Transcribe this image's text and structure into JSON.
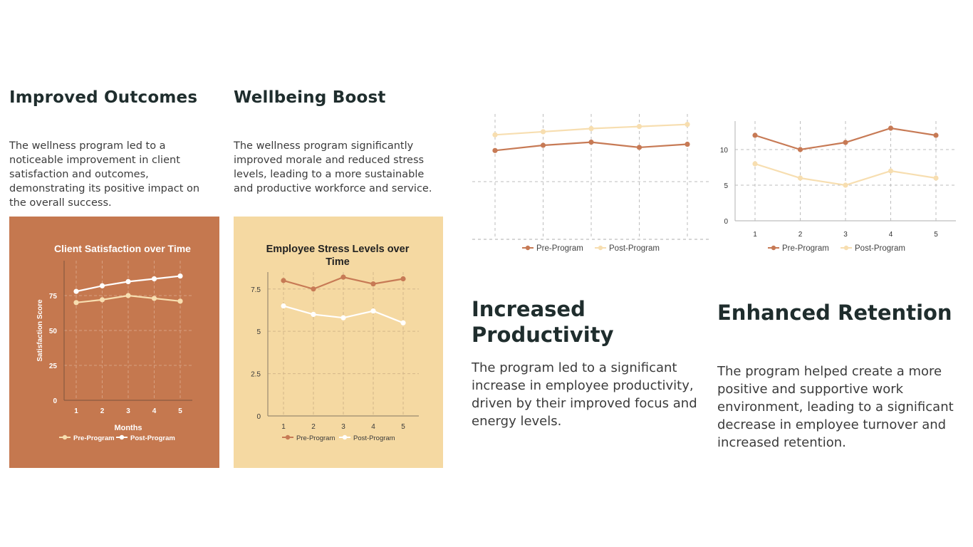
{
  "colors": {
    "terracotta": "#c5784f",
    "sand": "#f5d9a2",
    "pre": "#c77a55",
    "post": "#f7deb0",
    "white": "#ffffff"
  },
  "sections": {
    "outcomes": {
      "title": "Improved Outcomes",
      "text": "The wellness program led to a noticeable improvement in client satisfaction and outcomes, demonstrating its positive impact on the overall success."
    },
    "wellbeing": {
      "title": "Wellbeing Boost",
      "text": "The wellness program significantly improved morale and reduced stress levels, leading to a more sustainable and productive workforce and service."
    },
    "productivity": {
      "title_line1": "Increased",
      "title_line2": "Productivity",
      "text": "The program led to a significant increase in employee productivity, driven by their improved focus and energy levels."
    },
    "retention": {
      "title": "Enhanced Retention",
      "text": "The program helped create a more positive and supportive work environment, leading to a significant decrease in employee turnover and increased retention."
    }
  },
  "chart_data": [
    {
      "id": "client-satisfaction",
      "type": "line",
      "title": "Client Satisfaction over Time",
      "xlabel": "Months",
      "ylabel": "Satisfaction Score",
      "categories": [
        "1",
        "2",
        "3",
        "4",
        "5"
      ],
      "ylim": [
        0,
        100
      ],
      "yticks": [
        0,
        25,
        50,
        75
      ],
      "series": [
        {
          "name": "Pre-Program",
          "values": [
            70,
            72,
            75,
            73,
            71
          ]
        },
        {
          "name": "Post-Program",
          "values": [
            78,
            82,
            85,
            87,
            89
          ]
        }
      ],
      "legend": "bottom",
      "grid": true
    },
    {
      "id": "employee-stress",
      "type": "line",
      "title": "Employee Stress Levels over Time",
      "categories": [
        "1",
        "2",
        "3",
        "4",
        "5"
      ],
      "ylim": [
        0,
        8.5
      ],
      "yticks": [
        0,
        2.5,
        5,
        7.5
      ],
      "series": [
        {
          "name": "Pre-Program",
          "values": [
            8,
            7.5,
            8.2,
            7.8,
            8.1
          ]
        },
        {
          "name": "Post-Program",
          "values": [
            6.5,
            6,
            5.8,
            6.2,
            5.5
          ]
        }
      ],
      "legend": "bottom",
      "grid": true
    },
    {
      "id": "productivity",
      "type": "line",
      "categories": [
        "1",
        "2",
        "3",
        "4",
        "5"
      ],
      "ylim": [
        0,
        12
      ],
      "series": [
        {
          "name": "Pre-Program",
          "values": [
            8.5,
            9,
            9.3,
            8.8,
            9.1
          ]
        },
        {
          "name": "Post-Program",
          "values": [
            10,
            10.3,
            10.6,
            10.8,
            11
          ]
        }
      ],
      "legend": "bottom",
      "grid": true
    },
    {
      "id": "retention",
      "type": "line",
      "categories": [
        "1",
        "2",
        "3",
        "4",
        "5"
      ],
      "ylim": [
        0,
        14
      ],
      "yticks": [
        0,
        5,
        10
      ],
      "series": [
        {
          "name": "Pre-Program",
          "values": [
            12,
            10,
            11,
            13,
            12
          ]
        },
        {
          "name": "Post-Program",
          "values": [
            8,
            6,
            5,
            7,
            6
          ]
        }
      ],
      "legend": "bottom",
      "grid": true
    }
  ]
}
